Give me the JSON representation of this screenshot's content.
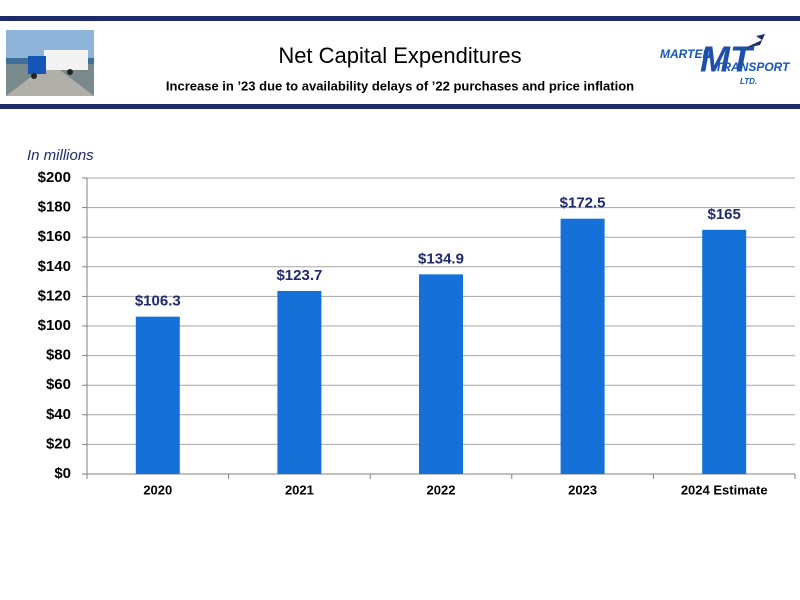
{
  "chart_data": {
    "type": "bar",
    "title": "Net Capital Expenditures",
    "subtitle": "Increase in ’23 due to availability delays of ’22 purchases and price inflation",
    "y_label": "In millions",
    "categories": [
      "2020",
      "2021",
      "2022",
      "2023",
      "2024 Estimate"
    ],
    "values": [
      106.3,
      123.7,
      134.9,
      172.5,
      165
    ],
    "value_labels": [
      "$106.3",
      "$123.7",
      "$134.9",
      "$172.5",
      "$165"
    ],
    "color": "#1570d8",
    "ylim": [
      0,
      200
    ],
    "yticks": [
      {
        "value": 0,
        "label": "$0"
      },
      {
        "value": 20,
        "label": "$20"
      },
      {
        "value": 40,
        "label": "$40"
      },
      {
        "value": 60,
        "label": "$60"
      },
      {
        "value": 80,
        "label": "$80"
      },
      {
        "value": 100,
        "label": "$100"
      },
      {
        "value": 120,
        "label": "$120"
      },
      {
        "value": 140,
        "label": "$140"
      },
      {
        "value": 160,
        "label": "$160"
      },
      {
        "value": 180,
        "label": "$180"
      },
      {
        "value": 200,
        "label": "$200"
      }
    ],
    "grid": true
  },
  "logo": {
    "name": "MARTEN",
    "initials": "MT",
    "word": "TRANSPORT",
    "suffix": "LTD."
  }
}
